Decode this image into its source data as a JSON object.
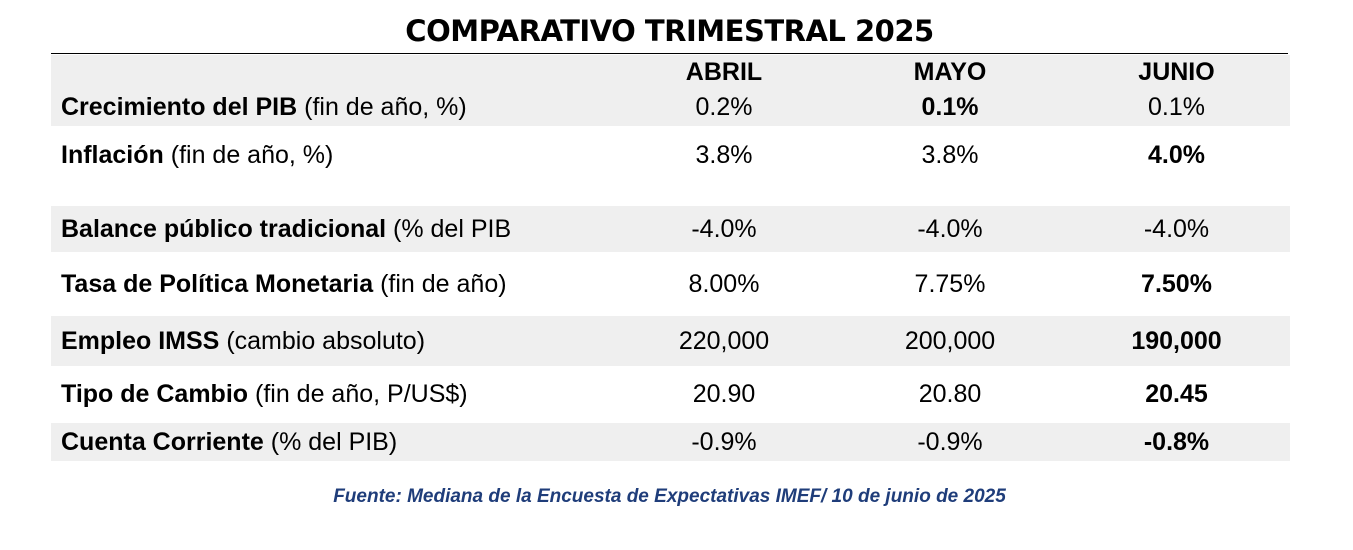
{
  "title": "COMPARATIVO TRIMESTRAL 2025",
  "columns": [
    "ABRIL",
    "MAYO",
    "JUNIO"
  ],
  "rows": [
    {
      "label_bold": "Crecimiento del PIB",
      "label_rest": " (fin de año, %)",
      "values": [
        "0.2%",
        "0.1%",
        "0.1%"
      ],
      "bold": [
        false,
        true,
        false
      ]
    },
    {
      "label_bold": "Inflación",
      "label_rest": " (fin de año, %)",
      "values": [
        "3.8%",
        "3.8%",
        "4.0%"
      ],
      "bold": [
        false,
        false,
        true
      ]
    },
    {
      "label_bold": "Balance público tradicional",
      "label_rest": " (% del PIB",
      "values": [
        "-4.0%",
        "-4.0%",
        "-4.0%"
      ],
      "bold": [
        false,
        false,
        false
      ]
    },
    {
      "label_bold": "Tasa de Política Monetaria",
      "label_rest": " (fin de año)",
      "values": [
        "8.00%",
        "7.75%",
        "7.50%"
      ],
      "bold": [
        false,
        false,
        true
      ]
    },
    {
      "label_bold": "Empleo IMSS",
      "label_rest": " (cambio absoluto)",
      "values": [
        "220,000",
        "200,000",
        "190,000"
      ],
      "bold": [
        false,
        false,
        true
      ]
    },
    {
      "label_bold": "Tipo de Cambio",
      "label_rest": " (fin de año, P/US$)",
      "values": [
        "20.90",
        "20.80",
        "20.45"
      ],
      "bold": [
        false,
        false,
        true
      ]
    },
    {
      "label_bold": "Cuenta Corriente",
      "label_rest": " (% del PIB)",
      "values": [
        "-0.9%",
        "-0.9%",
        "-0.8%"
      ],
      "bold": [
        false,
        false,
        true
      ]
    }
  ],
  "source": "Fuente: Mediana de la Encuesta de Expectativas IMEF/ 10 de junio de 2025",
  "colors": {
    "shading": "#efefef",
    "source_text": "#1f3d7a"
  }
}
